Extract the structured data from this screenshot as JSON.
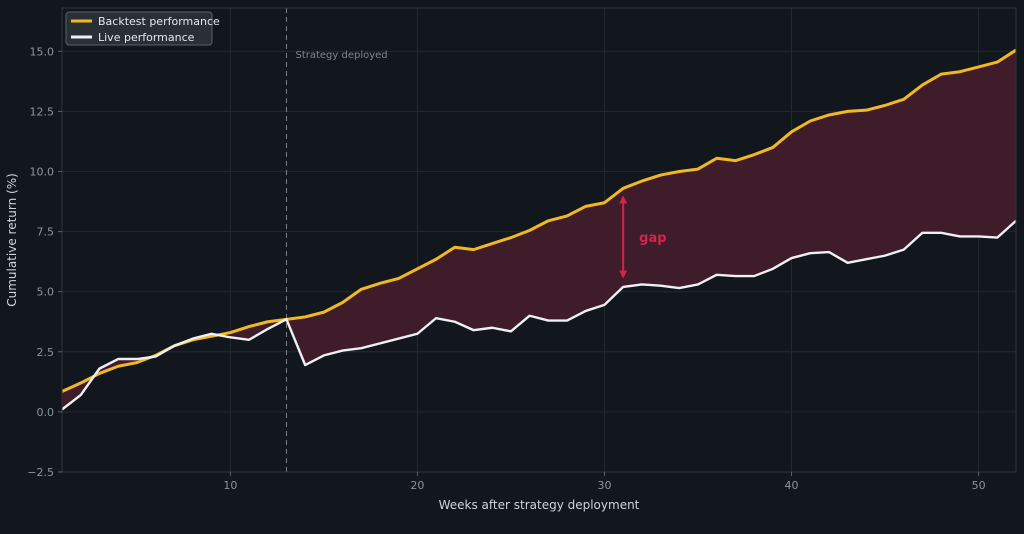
{
  "chart_data": {
    "type": "line",
    "xlabel": "Weeks after strategy deployment",
    "ylabel": "Cumulative return (%)",
    "xlim": [
      1,
      52
    ],
    "ylim": [
      -2.5,
      16.8
    ],
    "xticks": [
      10,
      20,
      30,
      40,
      50
    ],
    "xtick_labels": [
      "10",
      "20",
      "30",
      "40",
      "50"
    ],
    "yticks": [
      -2.5,
      0.0,
      2.5,
      5.0,
      7.5,
      10.0,
      12.5,
      15.0
    ],
    "ytick_labels": [
      "−2.5",
      "0.0",
      "2.5",
      "5.0",
      "7.5",
      "10.0",
      "12.5",
      "15.0"
    ],
    "grid": true,
    "legend_position": "top-left",
    "x": [
      1,
      2,
      3,
      4,
      5,
      6,
      7,
      8,
      9,
      10,
      11,
      12,
      13,
      14,
      15,
      16,
      17,
      18,
      19,
      20,
      21,
      22,
      23,
      24,
      25,
      26,
      27,
      28,
      29,
      30,
      31,
      32,
      33,
      34,
      35,
      36,
      37,
      38,
      39,
      40,
      41,
      42,
      43,
      44,
      45,
      46,
      47,
      48,
      49,
      50,
      51,
      52
    ],
    "series": [
      {
        "name": "Backtest performance",
        "color": "#f2b824",
        "values": [
          0.85,
          1.2,
          1.6,
          1.9,
          2.05,
          2.35,
          2.75,
          3.0,
          3.15,
          3.3,
          3.55,
          3.75,
          3.85,
          3.95,
          4.15,
          4.55,
          5.1,
          5.35,
          5.55,
          5.95,
          6.35,
          6.85,
          6.75,
          7.0,
          7.25,
          7.55,
          7.95,
          8.15,
          8.55,
          8.7,
          9.3,
          9.6,
          9.85,
          10.0,
          10.1,
          10.55,
          10.45,
          10.7,
          11.0,
          11.65,
          12.1,
          12.35,
          12.5,
          12.55,
          12.75,
          13.0,
          13.6,
          14.05,
          14.15,
          14.35,
          14.55,
          15.05
        ]
      },
      {
        "name": "Live performance",
        "color": "#eef0f4",
        "values": [
          0.1,
          0.7,
          1.8,
          2.2,
          2.2,
          2.3,
          2.75,
          3.05,
          3.25,
          3.1,
          3.0,
          3.45,
          3.85,
          1.95,
          2.35,
          2.55,
          2.65,
          2.85,
          3.05,
          3.25,
          3.9,
          3.75,
          3.4,
          3.5,
          3.35,
          4.0,
          3.8,
          3.8,
          4.2,
          4.45,
          5.2,
          5.3,
          5.25,
          5.15,
          5.3,
          5.7,
          5.65,
          5.65,
          5.95,
          6.4,
          6.6,
          6.65,
          6.2,
          6.35,
          6.5,
          6.75,
          7.45,
          7.45,
          7.3,
          7.3,
          7.25,
          7.95
        ]
      }
    ],
    "vline": {
      "x": 13,
      "label": "Strategy deployed"
    },
    "gap_annotation": {
      "x": 31,
      "y_top": 9.0,
      "y_bottom": 5.55,
      "label": "gap",
      "color": "#d6224e"
    },
    "fill_color": "#3e1c2a",
    "background": "#11171c"
  }
}
